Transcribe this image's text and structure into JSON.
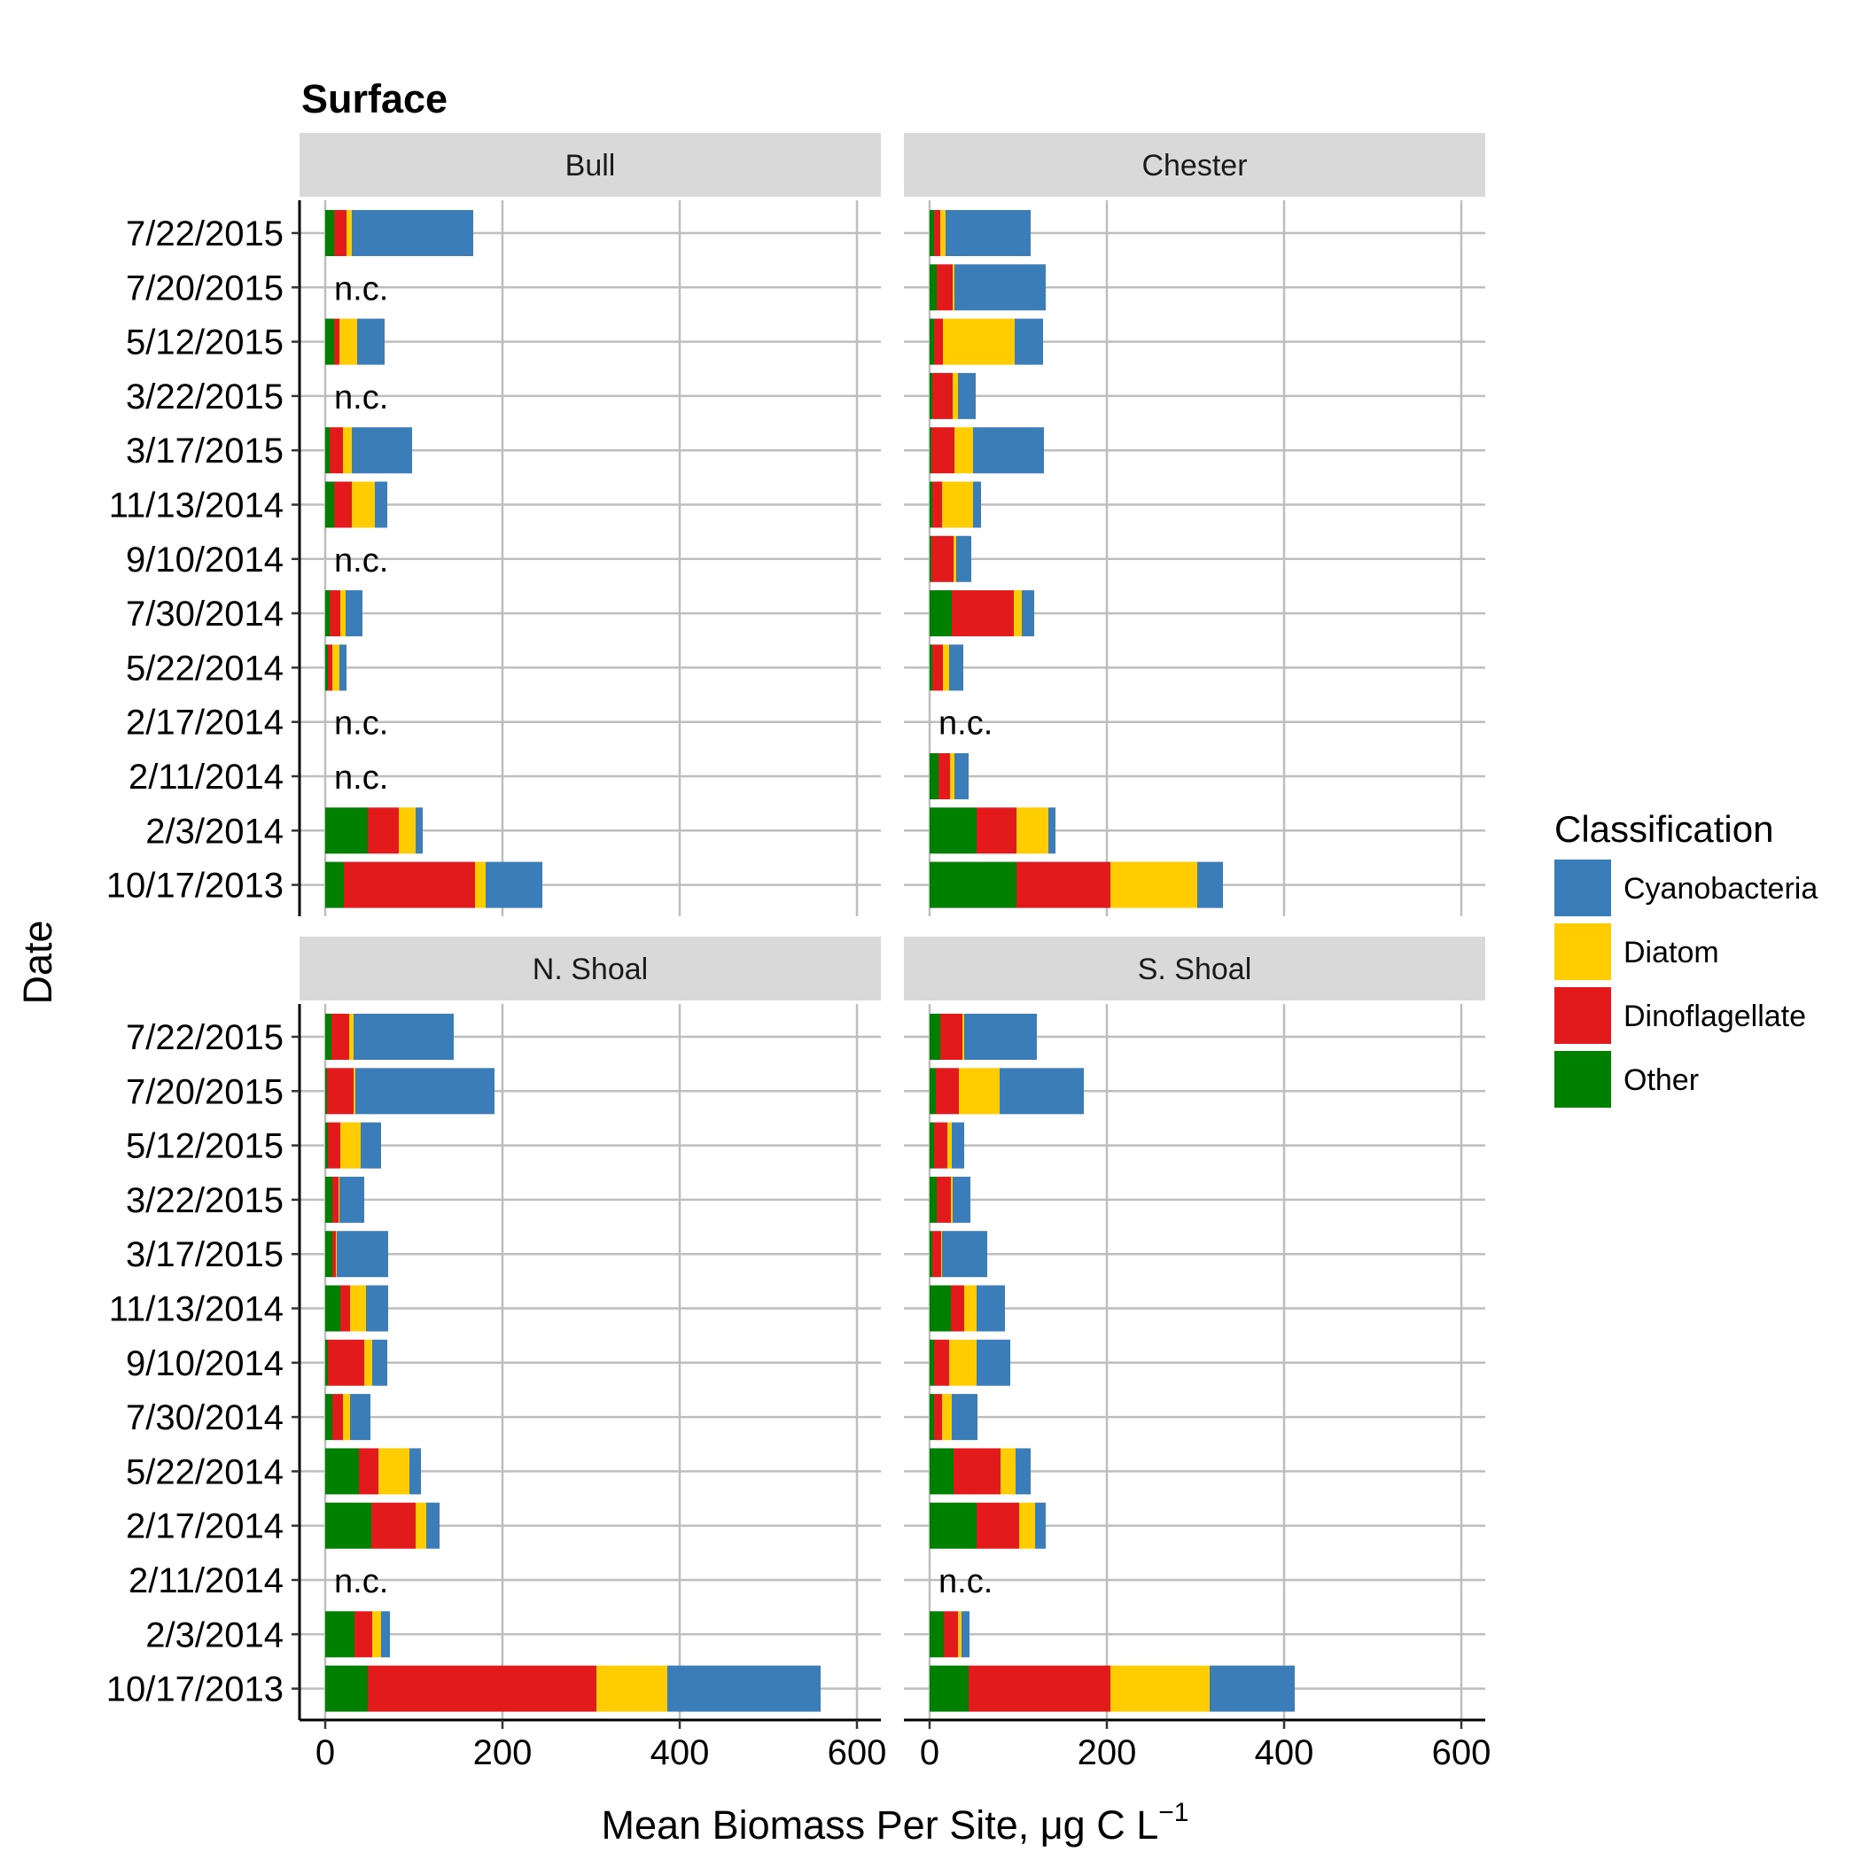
{
  "chart_data": {
    "type": "bar",
    "orientation": "horizontal",
    "stacked": true,
    "title": "Surface",
    "xlabel": "Mean Biomass Per Site, μg C L",
    "xlabel_superscript": "−1",
    "ylabel": "Date",
    "xlim": [
      0,
      600
    ],
    "xticks": [
      "0",
      "200",
      "400",
      "600"
    ],
    "grid": true,
    "legend_position": "right",
    "legend_title": "Classification",
    "not_collected_label": "n.c.",
    "categories": [
      "7/22/2015",
      "7/20/2015",
      "5/12/2015",
      "3/22/2015",
      "3/17/2015",
      "11/13/2014",
      "9/10/2014",
      "7/30/2014",
      "5/22/2014",
      "2/17/2014",
      "2/11/2014",
      "2/3/2014",
      "10/17/2013"
    ],
    "series_order": [
      "Other",
      "Dinoflagellate",
      "Diatom",
      "Cyanobacteria"
    ],
    "legend_order": [
      "Cyanobacteria",
      "Diatom",
      "Dinoflagellate",
      "Other"
    ],
    "colors": {
      "Cyanobacteria": "#3a7db8",
      "Diatom": "#ffcc00",
      "Dinoflagellate": "#e31a1c",
      "Other": "#008000"
    },
    "panels": [
      {
        "name": "Bull",
        "values": {
          "7/22/2015": [
            10,
            14,
            6,
            137
          ],
          "7/20/2015": null,
          "5/12/2015": [
            10,
            6,
            20,
            31
          ],
          "3/22/2015": null,
          "3/17/2015": [
            5,
            15,
            10,
            68
          ],
          "11/13/2014": [
            10,
            20,
            26,
            14
          ],
          "9/10/2014": null,
          "7/30/2014": [
            5,
            12,
            6,
            19
          ],
          "5/22/2014": [
            3,
            5,
            8,
            8
          ],
          "2/17/2014": null,
          "2/11/2014": null,
          "2/3/2014": [
            48,
            35,
            19,
            8
          ],
          "10/17/2013": [
            21,
            148,
            12,
            64
          ]
        }
      },
      {
        "name": "Chester",
        "values": {
          "7/22/2015": [
            5,
            7,
            6,
            96
          ],
          "7/20/2015": [
            8,
            18,
            2,
            103
          ],
          "5/12/2015": [
            5,
            10,
            81,
            32
          ],
          "3/22/2015": [
            3,
            23,
            6,
            20
          ],
          "3/17/2015": [
            2,
            26,
            21,
            80
          ],
          "11/13/2014": [
            3,
            11,
            35,
            9
          ],
          "9/10/2014": [
            2,
            25,
            3,
            17
          ],
          "7/30/2014": [
            25,
            70,
            9,
            14
          ],
          "5/22/2014": [
            3,
            12,
            7,
            16
          ],
          "2/17/2014": null,
          "2/11/2014": [
            10,
            13,
            5,
            16
          ],
          "2/3/2014": [
            53,
            45,
            36,
            8
          ],
          "10/17/2013": [
            98,
            106,
            98,
            29
          ]
        }
      },
      {
        "name": "N. Shoal",
        "values": {
          "7/22/2015": [
            7,
            20,
            5,
            113
          ],
          "7/20/2015": [
            2,
            30,
            2,
            157
          ],
          "5/12/2015": [
            3,
            14,
            23,
            23
          ],
          "3/22/2015": [
            8,
            7,
            1,
            28
          ],
          "3/17/2015": [
            8,
            4,
            1,
            58
          ],
          "11/13/2014": [
            17,
            11,
            18,
            25
          ],
          "9/10/2014": [
            3,
            41,
            9,
            17
          ],
          "7/30/2014": [
            8,
            12,
            8,
            23
          ],
          "5/22/2014": [
            38,
            22,
            35,
            13
          ],
          "2/17/2014": [
            52,
            50,
            12,
            15
          ],
          "2/11/2014": null,
          "2/3/2014": [
            33,
            20,
            10,
            10
          ],
          "10/17/2013": [
            48,
            258,
            80,
            173
          ]
        }
      },
      {
        "name": "S. Shoal",
        "values": {
          "7/22/2015": [
            12,
            25,
            2,
            82
          ],
          "7/20/2015": [
            7,
            26,
            46,
            95
          ],
          "5/12/2015": [
            5,
            15,
            5,
            14
          ],
          "3/22/2015": [
            8,
            16,
            2,
            20
          ],
          "3/17/2015": [
            3,
            10,
            1,
            51
          ],
          "11/13/2014": [
            24,
            15,
            14,
            32
          ],
          "9/10/2014": [
            5,
            17,
            31,
            38
          ],
          "7/30/2014": [
            5,
            9,
            11,
            29
          ],
          "5/22/2014": [
            27,
            53,
            17,
            17
          ],
          "2/17/2014": [
            53,
            48,
            18,
            12
          ],
          "2/11/2014": null,
          "2/3/2014": [
            16,
            16,
            4,
            9
          ],
          "10/17/2013": [
            44,
            160,
            112,
            96
          ]
        }
      }
    ]
  }
}
